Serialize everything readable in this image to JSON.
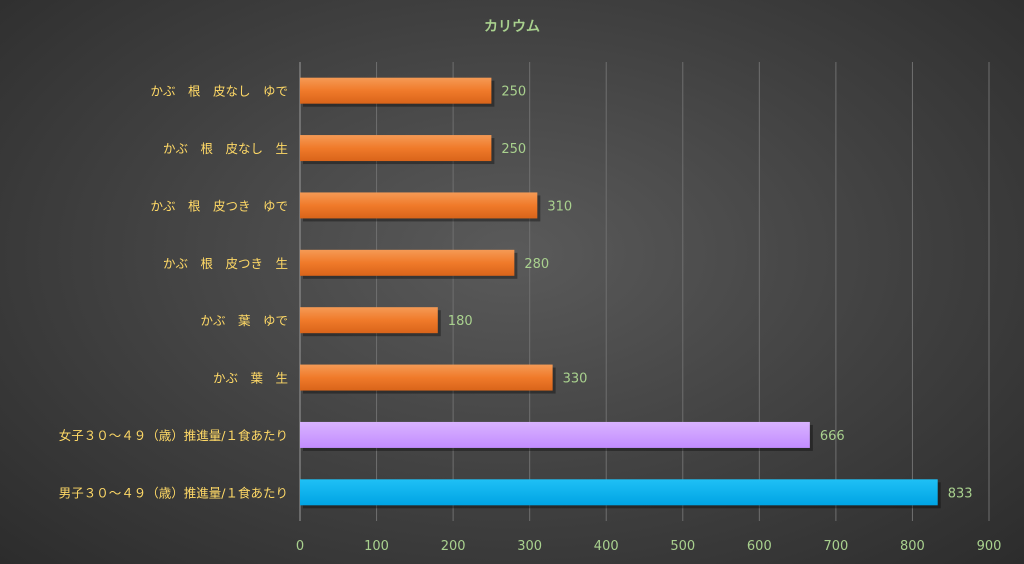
{
  "chart_data": {
    "type": "bar",
    "orientation": "horizontal",
    "title": "カリウム",
    "categories": [
      "かぶ　根　皮なし　ゆで",
      "かぶ　根　皮なし　生",
      "かぶ　根　皮つき　ゆで",
      "かぶ　根　皮つき　生",
      "かぶ　葉　ゆで",
      "かぶ　葉　生",
      "女子３０～４９（歳）推進量/１食あたり",
      "男子３０～４９（歳）推進量/１食あたり"
    ],
    "values": [
      250,
      250,
      310,
      280,
      180,
      330,
      666,
      833
    ],
    "bar_colors": [
      "#f07a2a",
      "#f07a2a",
      "#f07a2a",
      "#f07a2a",
      "#f07a2a",
      "#f07a2a",
      "#cc99ff",
      "#00b0f0"
    ],
    "xlim": [
      0,
      900
    ],
    "xticks": [
      0,
      100,
      200,
      300,
      400,
      500,
      600,
      700,
      800,
      900
    ],
    "grid": "vertical",
    "legend": "none",
    "colors": {
      "title": "#a9d18e",
      "category_labels": "#ffd966",
      "value_labels": "#a9d18e",
      "tick_labels": "#a9d18e",
      "grid": "#6f6f6f"
    }
  }
}
